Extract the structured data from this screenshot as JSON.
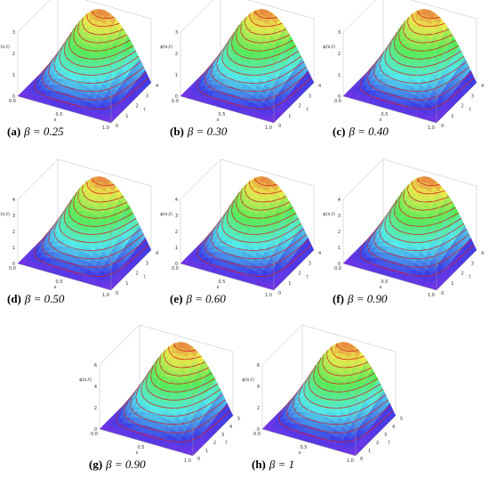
{
  "panels": [
    {
      "label": "(a)",
      "caption": "β = 0.25",
      "z_ticks": [
        "0",
        "1",
        "2",
        "3"
      ],
      "x_ticks": [
        "0.0",
        "0.5",
        "1.0"
      ],
      "t_ticks": [
        "0",
        "1",
        "2",
        "3",
        "4"
      ],
      "z_label": "φ(x,t)",
      "x_label": "x",
      "t_label": "t"
    },
    {
      "label": "(b)",
      "caption": "β = 0.30",
      "z_ticks": [
        "0",
        "1",
        "2",
        "3"
      ],
      "x_ticks": [
        "0.0",
        "0.5",
        "1.0"
      ],
      "t_ticks": [
        "0",
        "1",
        "2",
        "3",
        "4"
      ],
      "z_label": "φ(x,t)",
      "x_label": "x",
      "t_label": "t"
    },
    {
      "label": "(c)",
      "caption": "β = 0.40",
      "z_ticks": [
        "0",
        "1",
        "2",
        "3"
      ],
      "x_ticks": [
        "0.0",
        "0.5",
        "1.0"
      ],
      "t_ticks": [
        "0",
        "1",
        "2",
        "3",
        "4"
      ],
      "z_label": "φ(x,t)",
      "x_label": "x",
      "t_label": "t"
    },
    {
      "label": "(d)",
      "caption": "β = 0.50",
      "z_ticks": [
        "0",
        "1",
        "2",
        "3",
        "4"
      ],
      "x_ticks": [
        "0.0",
        "0.5",
        "1.0"
      ],
      "t_ticks": [
        "0",
        "1",
        "2",
        "3",
        "4"
      ],
      "z_label": "φ(x,t)",
      "x_label": "x",
      "t_label": "t"
    },
    {
      "label": "(e)",
      "caption": "β = 0.60",
      "z_ticks": [
        "0",
        "1",
        "2",
        "3",
        "4"
      ],
      "x_ticks": [
        "0.0",
        "0.5",
        "1.0"
      ],
      "t_ticks": [
        "0",
        "1",
        "2",
        "3",
        "4"
      ],
      "z_label": "φ(x,t)",
      "x_label": "x",
      "t_label": "t"
    },
    {
      "label": "(f)",
      "caption": "β = 0.90",
      "z_ticks": [
        "0",
        "1",
        "2",
        "3",
        "4"
      ],
      "x_ticks": [
        "0.0",
        "0.5",
        "1.0"
      ],
      "t_ticks": [
        "0",
        "1",
        "2",
        "3",
        "4"
      ],
      "z_label": "φ(x,t)",
      "x_label": "x",
      "t_label": "t"
    },
    {
      "label": "(g)",
      "caption": "β = 0.90",
      "z_ticks": [
        "0",
        "2",
        "4",
        "6"
      ],
      "x_ticks": [
        "0.0",
        "0.5",
        "1.0"
      ],
      "t_ticks": [
        "0",
        "1",
        "2",
        "3",
        "4",
        "5"
      ],
      "z_label": "φ(x,t)",
      "x_label": "x",
      "t_label": "t"
    },
    {
      "label": "(h)",
      "caption": "β = 1",
      "z_ticks": [
        "0",
        "2",
        "4",
        "6"
      ],
      "x_ticks": [
        "0.0",
        "0.5",
        "1.0"
      ],
      "t_ticks": [
        "0",
        "1",
        "2",
        "3",
        "4",
        "5"
      ],
      "z_label": "φ(x,t)",
      "x_label": "x",
      "t_label": "t"
    }
  ]
}
